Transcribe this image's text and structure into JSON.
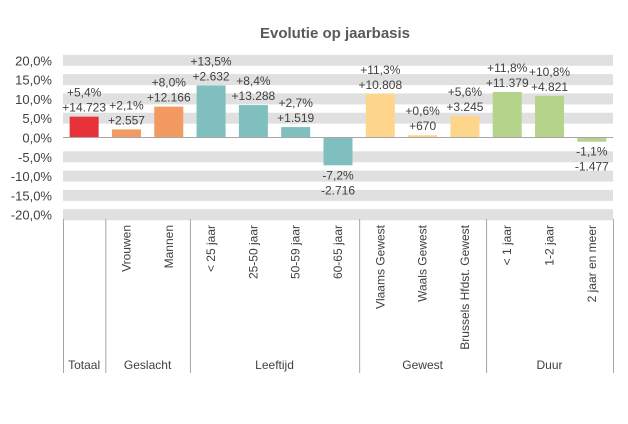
{
  "chart_data": {
    "type": "bar",
    "title": "Evolutie op jaarbasis",
    "xlabel": "",
    "ylabel": "",
    "ylim": [
      -20,
      20
    ],
    "yticks": [
      20,
      15,
      10,
      5,
      0,
      -5,
      -10,
      -15,
      -20
    ],
    "ytick_labels": [
      "20,0%",
      "15,0%",
      "10,0%",
      "5,0%",
      "0,0%",
      "-5,0%",
      "-10,0%",
      "-15,0%",
      "-20,0%"
    ],
    "grid": true,
    "legend": "none",
    "categories": [
      "Totaal",
      "Vrouwen",
      "Mannen",
      "< 25 jaar",
      "25-50 jaar",
      "50-59 jaar",
      "60-65 jaar",
      "Vlaams Gewest",
      "Waals Gewest",
      "Brussels Hfdst. Gewest",
      "< 1 jaar",
      "1-2 jaar",
      "2 jaar en meer"
    ],
    "values": [
      5.4,
      2.1,
      8.0,
      13.5,
      8.4,
      2.7,
      -7.2,
      11.3,
      0.6,
      5.6,
      11.8,
      10.8,
      -1.1
    ],
    "pct_labels": [
      "+5,4%",
      "+2,1%",
      "+8,0%",
      "+13,5%",
      "+8,4%",
      "+2,7%",
      "-7,2%",
      "+11,3%",
      "+0,6%",
      "+5,6%",
      "+11,8%",
      "+10,8%",
      "-1,1%"
    ],
    "abs_labels": [
      "+14.723",
      "+2.557",
      "+12.166",
      "+2.632",
      "+13.288",
      "+1.519",
      "-2.716",
      "+10.808",
      "+670",
      "+3.245",
      "+11.379",
      "+4.821",
      "-1.477"
    ],
    "absolute_changes": [
      14723,
      2557,
      12166,
      2632,
      13288,
      1519,
      -2716,
      10808,
      670,
      3245,
      11379,
      4821,
      -1477
    ],
    "groups": [
      {
        "label": "Totaal",
        "start": 0,
        "count": 1,
        "color": "#E8323A"
      },
      {
        "label": "Geslacht",
        "start": 1,
        "count": 2,
        "color": "#F29A5F"
      },
      {
        "label": "Leeftijd",
        "start": 3,
        "count": 4,
        "color": "#7FBFBF"
      },
      {
        "label": "Gewest",
        "start": 7,
        "count": 3,
        "color": "#FDD68C"
      },
      {
        "label": "Duur",
        "start": 10,
        "count": 3,
        "color": "#B5D38A"
      }
    ]
  },
  "colors": {
    "band": "#E0E0E0",
    "axis": "#A6A6A6",
    "text": "#404040",
    "title": "#595959"
  }
}
